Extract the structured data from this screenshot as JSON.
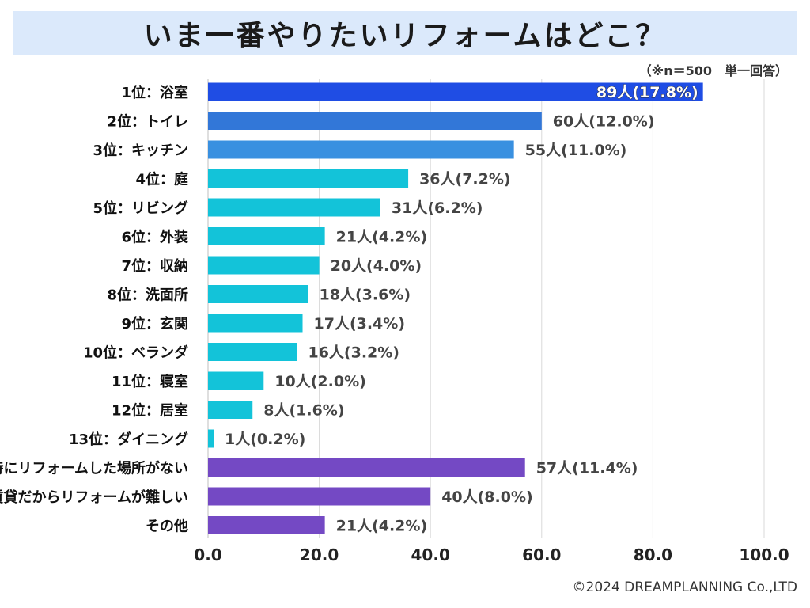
{
  "header": {
    "title": "いま一番やりたいリフォームはどこ？",
    "note": "（※n＝500　単一回答）"
  },
  "footer": {
    "copyright": "©2024 DREAMPLANNING Co.,LTD"
  },
  "colors": {
    "rank1": "#1f4de4",
    "rank2": "#3277d8",
    "rank3": "#3990e0",
    "cyan": "#13c3d9",
    "purple": "#7449c4",
    "grid": "#d9d9d9",
    "axis": "#bfbfbf"
  },
  "chart_data": {
    "type": "bar",
    "orientation": "horizontal",
    "title": "いま一番やりたいリフォームはどこ？",
    "xlabel": "",
    "ylabel": "",
    "xlim": [
      0,
      100
    ],
    "xticks": [
      "0.0",
      "20.0",
      "40.0",
      "60.0",
      "80.0",
      "100.0"
    ],
    "grid": true,
    "categories": [
      "1位：浴室",
      "2位：トイレ",
      "3位：キッチン",
      "4位：庭",
      "5位：リビング",
      "6位：外装",
      "7位：収納",
      "8位：洗面所",
      "9位：玄関",
      "10位：ベランダ",
      "11位：寝室",
      "12位：居室",
      "13位：ダイニング",
      "特にリフォームした場所がない",
      "賃貸だからリフォームが難しい",
      "その他"
    ],
    "values": [
      89,
      60,
      55,
      36,
      31,
      21,
      20,
      18,
      17,
      16,
      10,
      8,
      1,
      57,
      40,
      21
    ],
    "data_labels": [
      "89人(17.8%)",
      "60人(12.0%)",
      "55人(11.0%)",
      "36人(7.2%)",
      "31人(6.2%)",
      "21人(4.2%)",
      "20人(4.0%)",
      "18人(3.6%)",
      "17人(3.4%)",
      "16人(3.2%)",
      "10人(2.0%)",
      "8人(1.6%)",
      "1人(0.2%)",
      "57人(11.4%)",
      "40人(8.0%)",
      "21人(4.2%)"
    ],
    "bar_colors": [
      "rank1",
      "rank2",
      "rank3",
      "cyan",
      "cyan",
      "cyan",
      "cyan",
      "cyan",
      "cyan",
      "cyan",
      "cyan",
      "cyan",
      "cyan",
      "purple",
      "purple",
      "purple"
    ]
  }
}
